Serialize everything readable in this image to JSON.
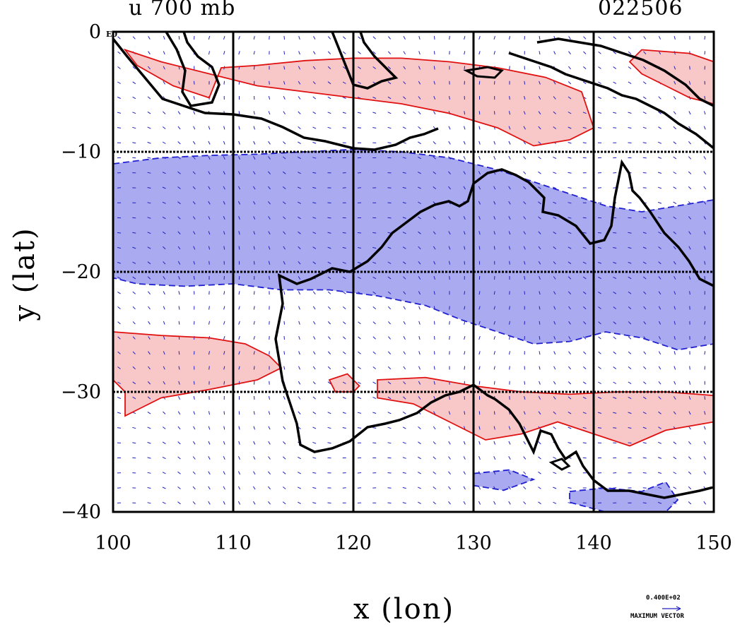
{
  "chart_data": {
    "type": "contour-vector-map",
    "title_left": "u 700 mb",
    "title_right": "022506",
    "xlabel": "x (lon)",
    "ylabel": "y (lat)",
    "xlim": [
      100,
      150
    ],
    "ylim": [
      -40,
      0
    ],
    "x_ticks": [
      100,
      110,
      120,
      130,
      140,
      150
    ],
    "x_tick_labels": [
      "100",
      "110",
      "120",
      "130",
      "140",
      "150"
    ],
    "y_ticks": [
      0,
      -10,
      -20,
      -30,
      -40
    ],
    "y_tick_labels": [
      "0",
      "−10",
      "−20",
      "−30",
      "−40"
    ],
    "y_top_suffix": "E0",
    "grid": true,
    "grid_lines_lon": [
      110,
      120,
      130,
      140
    ],
    "grid_lines_lat": [
      -10,
      -20,
      -30
    ],
    "vector_key": {
      "value": "0.400E+02",
      "caption": "MAXIMUM VECTOR"
    },
    "colors": {
      "positive_fill": "#f8c8c8",
      "positive_line": "#e01010",
      "negative_fill": "#aaaaf0",
      "negative_line": "#2020d0",
      "coast": "#000000",
      "vectors": "#2020c0",
      "grid": "#000000"
    },
    "regions": [
      {
        "sign": "positive",
        "name": "north-band",
        "lonlat": [
          [
            101,
            -1.5
          ],
          [
            104,
            -2.5
          ],
          [
            108,
            -3.5
          ],
          [
            112,
            -4.5
          ],
          [
            116,
            -5
          ],
          [
            120,
            -5.5
          ],
          [
            124,
            -6
          ],
          [
            128,
            -6.8
          ],
          [
            132,
            -8
          ],
          [
            135,
            -9.5
          ],
          [
            138,
            -9
          ],
          [
            140,
            -8
          ],
          [
            139,
            -5
          ],
          [
            136,
            -3.8
          ],
          [
            132,
            -3
          ],
          [
            128,
            -2.5
          ],
          [
            124,
            -2.2
          ],
          [
            120,
            -2.2
          ],
          [
            116,
            -2.4
          ],
          [
            112,
            -2.8
          ],
          [
            109,
            -3
          ],
          [
            108,
            -5.5
          ],
          [
            105,
            -4.5
          ],
          [
            102,
            -2.8
          ]
        ]
      },
      {
        "sign": "positive",
        "name": "ne-corner",
        "lonlat": [
          [
            144,
            -1.5
          ],
          [
            148,
            -1.8
          ],
          [
            150,
            -2.5
          ],
          [
            150,
            -6
          ],
          [
            148,
            -5.5
          ],
          [
            146,
            -4.5
          ],
          [
            144,
            -3.5
          ],
          [
            143,
            -2.5
          ]
        ]
      },
      {
        "sign": "negative",
        "name": "central-band",
        "lonlat": [
          [
            100,
            -11
          ],
          [
            104,
            -10.5
          ],
          [
            108,
            -10.3
          ],
          [
            112,
            -10.2
          ],
          [
            116,
            -10
          ],
          [
            120,
            -9.8
          ],
          [
            124,
            -10
          ],
          [
            128,
            -10.5
          ],
          [
            132,
            -11.5
          ],
          [
            135,
            -12.5
          ],
          [
            138,
            -13.5
          ],
          [
            141,
            -14.5
          ],
          [
            144,
            -15
          ],
          [
            147,
            -14.5
          ],
          [
            150,
            -14
          ],
          [
            150,
            -26
          ],
          [
            147,
            -26.5
          ],
          [
            144,
            -25.5
          ],
          [
            141,
            -25
          ],
          [
            138,
            -25.8
          ],
          [
            135,
            -26
          ],
          [
            132,
            -25
          ],
          [
            129,
            -24
          ],
          [
            126,
            -22.8
          ],
          [
            122,
            -22
          ],
          [
            118,
            -21.5
          ],
          [
            114,
            -21.5
          ],
          [
            110,
            -21
          ],
          [
            106,
            -21.2
          ],
          [
            102,
            -21
          ],
          [
            100,
            -20.5
          ]
        ]
      },
      {
        "sign": "positive",
        "name": "west-band",
        "lonlat": [
          [
            100,
            -25
          ],
          [
            104,
            -25.3
          ],
          [
            108,
            -25.5
          ],
          [
            111,
            -26
          ],
          [
            113,
            -27
          ],
          [
            114,
            -28
          ],
          [
            112,
            -29
          ],
          [
            108,
            -29.8
          ],
          [
            104,
            -30.5
          ],
          [
            102,
            -31.5
          ],
          [
            101,
            -32
          ],
          [
            101,
            -30
          ],
          [
            100,
            -29
          ]
        ]
      },
      {
        "sign": "positive",
        "name": "south-band",
        "lonlat": [
          [
            122,
            -29
          ],
          [
            126,
            -28.8
          ],
          [
            130,
            -29.5
          ],
          [
            134,
            -30
          ],
          [
            138,
            -30.2
          ],
          [
            142,
            -30
          ],
          [
            146,
            -30
          ],
          [
            150,
            -30.3
          ],
          [
            150,
            -32.5
          ],
          [
            146,
            -33.2
          ],
          [
            143,
            -34.5
          ],
          [
            140,
            -33.5
          ],
          [
            137,
            -32.5
          ],
          [
            134,
            -33.5
          ],
          [
            131,
            -34
          ],
          [
            128,
            -32.5
          ],
          [
            125,
            -31
          ],
          [
            122,
            -30.5
          ]
        ]
      },
      {
        "sign": "positive",
        "name": "patch-119",
        "lonlat": [
          [
            118,
            -29
          ],
          [
            119.5,
            -28.5
          ],
          [
            120.5,
            -29.5
          ],
          [
            120,
            -30
          ],
          [
            118.5,
            -30
          ]
        ]
      },
      {
        "sign": "negative",
        "name": "south-patch-1",
        "lonlat": [
          [
            130,
            -36.8
          ],
          [
            133,
            -36.5
          ],
          [
            135,
            -37.3
          ],
          [
            132.5,
            -38.2
          ],
          [
            130,
            -37.8
          ]
        ]
      },
      {
        "sign": "negative",
        "name": "south-patch-2",
        "lonlat": [
          [
            138,
            -38.3
          ],
          [
            141,
            -38
          ],
          [
            144,
            -38.3
          ],
          [
            146,
            -37.5
          ],
          [
            147,
            -39
          ],
          [
            146,
            -40
          ],
          [
            141,
            -40
          ],
          [
            138,
            -39.2
          ]
        ]
      }
    ]
  }
}
